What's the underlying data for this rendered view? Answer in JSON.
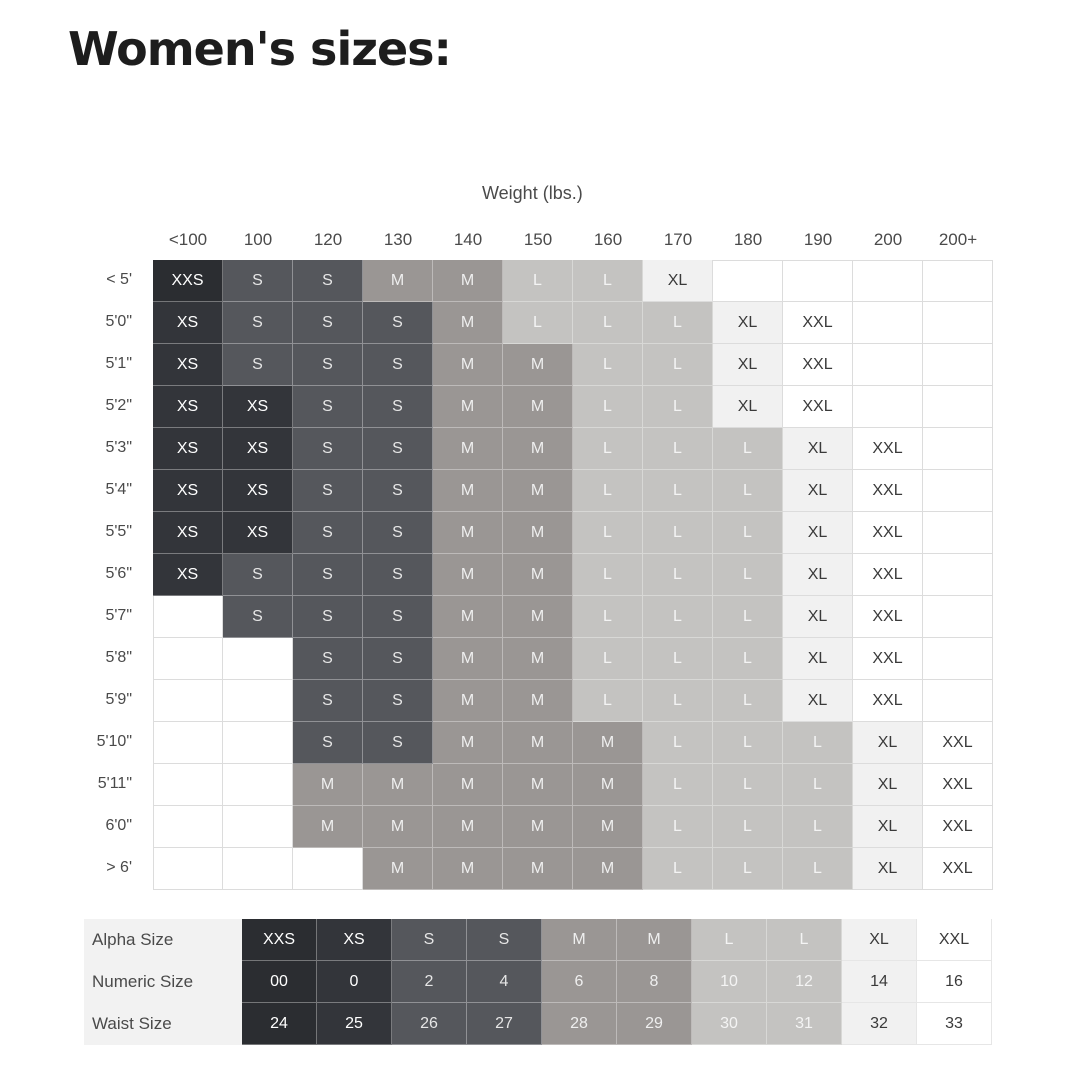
{
  "page": {
    "title": "Women's sizes:"
  },
  "chart": {
    "axis_title": "Weight (lbs.)",
    "weights": [
      "<100",
      "100",
      "120",
      "130",
      "140",
      "150",
      "160",
      "170",
      "180",
      "190",
      "200",
      "200+"
    ],
    "rows": [
      {
        "height": "< 5'",
        "sizes": [
          "XXS",
          "S",
          "S",
          "M",
          "M",
          "L",
          "L",
          "XL",
          "",
          "",
          "",
          ""
        ]
      },
      {
        "height": "5'0\"",
        "sizes": [
          "XS",
          "S",
          "S",
          "S",
          "M",
          "L",
          "L",
          "L",
          "XL",
          "XXL",
          "",
          ""
        ]
      },
      {
        "height": "5'1\"",
        "sizes": [
          "XS",
          "S",
          "S",
          "S",
          "M",
          "M",
          "L",
          "L",
          "XL",
          "XXL",
          "",
          ""
        ]
      },
      {
        "height": "5'2\"",
        "sizes": [
          "XS",
          "XS",
          "S",
          "S",
          "M",
          "M",
          "L",
          "L",
          "XL",
          "XXL",
          "",
          ""
        ]
      },
      {
        "height": "5'3\"",
        "sizes": [
          "XS",
          "XS",
          "S",
          "S",
          "M",
          "M",
          "L",
          "L",
          "L",
          "XL",
          "XXL",
          ""
        ]
      },
      {
        "height": "5'4\"",
        "sizes": [
          "XS",
          "XS",
          "S",
          "S",
          "M",
          "M",
          "L",
          "L",
          "L",
          "XL",
          "XXL",
          ""
        ]
      },
      {
        "height": "5'5\"",
        "sizes": [
          "XS",
          "XS",
          "S",
          "S",
          "M",
          "M",
          "L",
          "L",
          "L",
          "XL",
          "XXL",
          ""
        ]
      },
      {
        "height": "5'6\"",
        "sizes": [
          "XS",
          "S",
          "S",
          "S",
          "M",
          "M",
          "L",
          "L",
          "L",
          "XL",
          "XXL",
          ""
        ]
      },
      {
        "height": "5'7\"",
        "sizes": [
          "",
          "S",
          "S",
          "S",
          "M",
          "M",
          "L",
          "L",
          "L",
          "XL",
          "XXL",
          ""
        ]
      },
      {
        "height": "5'8\"",
        "sizes": [
          "",
          "",
          "S",
          "S",
          "M",
          "M",
          "L",
          "L",
          "L",
          "XL",
          "XXL",
          ""
        ]
      },
      {
        "height": "5'9\"",
        "sizes": [
          "",
          "",
          "S",
          "S",
          "M",
          "M",
          "L",
          "L",
          "L",
          "XL",
          "XXL",
          ""
        ]
      },
      {
        "height": "5'10\"",
        "sizes": [
          "",
          "",
          "S",
          "S",
          "M",
          "M",
          "M",
          "L",
          "L",
          "L",
          "XL",
          "XXL"
        ]
      },
      {
        "height": "5'11\"",
        "sizes": [
          "",
          "",
          "M",
          "M",
          "M",
          "M",
          "M",
          "L",
          "L",
          "L",
          "XL",
          "XXL"
        ]
      },
      {
        "height": "6'0\"",
        "sizes": [
          "",
          "",
          "M",
          "M",
          "M",
          "M",
          "M",
          "L",
          "L",
          "L",
          "XL",
          "XXL"
        ]
      },
      {
        "height": "> 6'",
        "sizes": [
          "",
          "",
          "",
          "M",
          "M",
          "M",
          "M",
          "L",
          "L",
          "L",
          "XL",
          "XXL"
        ]
      }
    ]
  },
  "size_colors": {
    "XXS": {
      "bg": "#2b2d31",
      "fg": "#ffffff"
    },
    "XS": {
      "bg": "#33353a",
      "fg": "#ffffff"
    },
    "S": {
      "bg": "#55575c",
      "fg": "#e6e6e6"
    },
    "M": {
      "bg": "#9a9694",
      "fg": "#efefef"
    },
    "L": {
      "bg": "#c4c3c1",
      "fg": "#f4f4f4"
    },
    "XL": {
      "bg": "#f1f1f1",
      "fg": "#3a3a3a"
    },
    "XXL": {
      "bg": "#ffffff",
      "fg": "#3a3a3a"
    }
  },
  "legend": {
    "rows": [
      {
        "label": "Alpha Size",
        "values": [
          "XXS",
          "XS",
          "S",
          "S",
          "M",
          "M",
          "L",
          "L",
          "XL",
          "XXL"
        ]
      },
      {
        "label": "Numeric Size",
        "values": [
          "00",
          "0",
          "2",
          "4",
          "6",
          "8",
          "10",
          "12",
          "14",
          "16"
        ]
      },
      {
        "label": "Waist Size",
        "values": [
          "24",
          "25",
          "26",
          "27",
          "28",
          "29",
          "30",
          "31",
          "32",
          "33"
        ]
      }
    ],
    "column_sizes": [
      "XXS",
      "XS",
      "S",
      "S",
      "M",
      "M",
      "L",
      "L",
      "XL",
      "XXL"
    ]
  }
}
